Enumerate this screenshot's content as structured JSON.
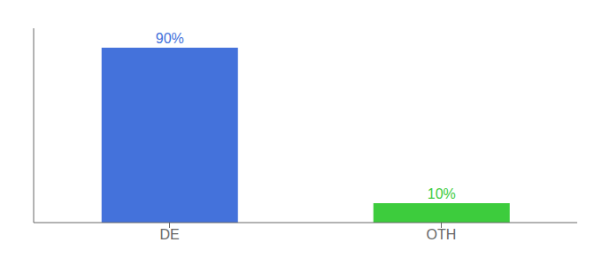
{
  "chart_data": {
    "type": "bar",
    "categories": [
      "DE",
      "OTH"
    ],
    "values": [
      90,
      10
    ],
    "value_labels": [
      "90%",
      "10%"
    ],
    "data_labels": true,
    "colors": [
      "#4472db",
      "#3dcc3d"
    ],
    "ylim": [
      0,
      100
    ],
    "tick_labels": "x",
    "grid": false
  }
}
